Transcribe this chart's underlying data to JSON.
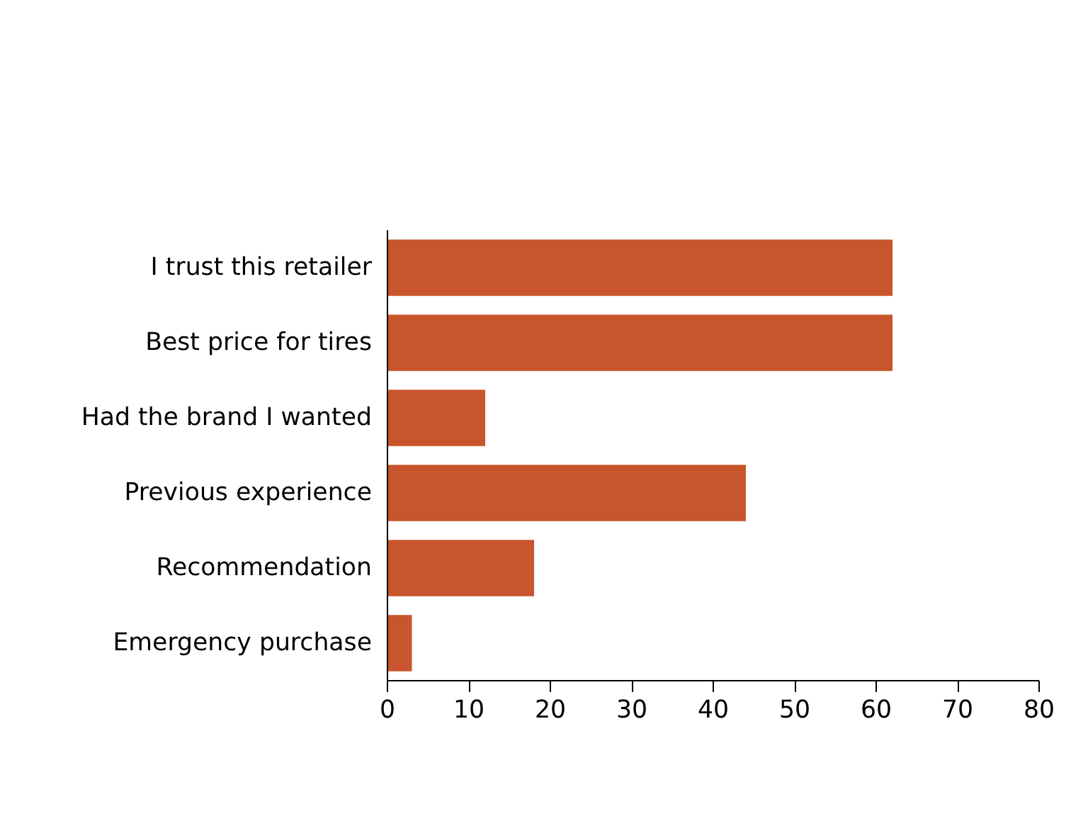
{
  "chart_data": {
    "type": "bar",
    "orientation": "horizontal",
    "categories": [
      "I trust this retailer",
      "Best price for tires",
      "Had the brand I wanted",
      "Previous experience",
      "Recommendation",
      "Emergency purchase"
    ],
    "values": [
      62,
      62,
      12,
      44,
      18,
      3
    ],
    "color": "#c8552b",
    "xlim": [
      0,
      80
    ],
    "xticks": [
      0,
      10,
      20,
      30,
      40,
      50,
      60,
      70,
      80
    ],
    "grid": false
  }
}
